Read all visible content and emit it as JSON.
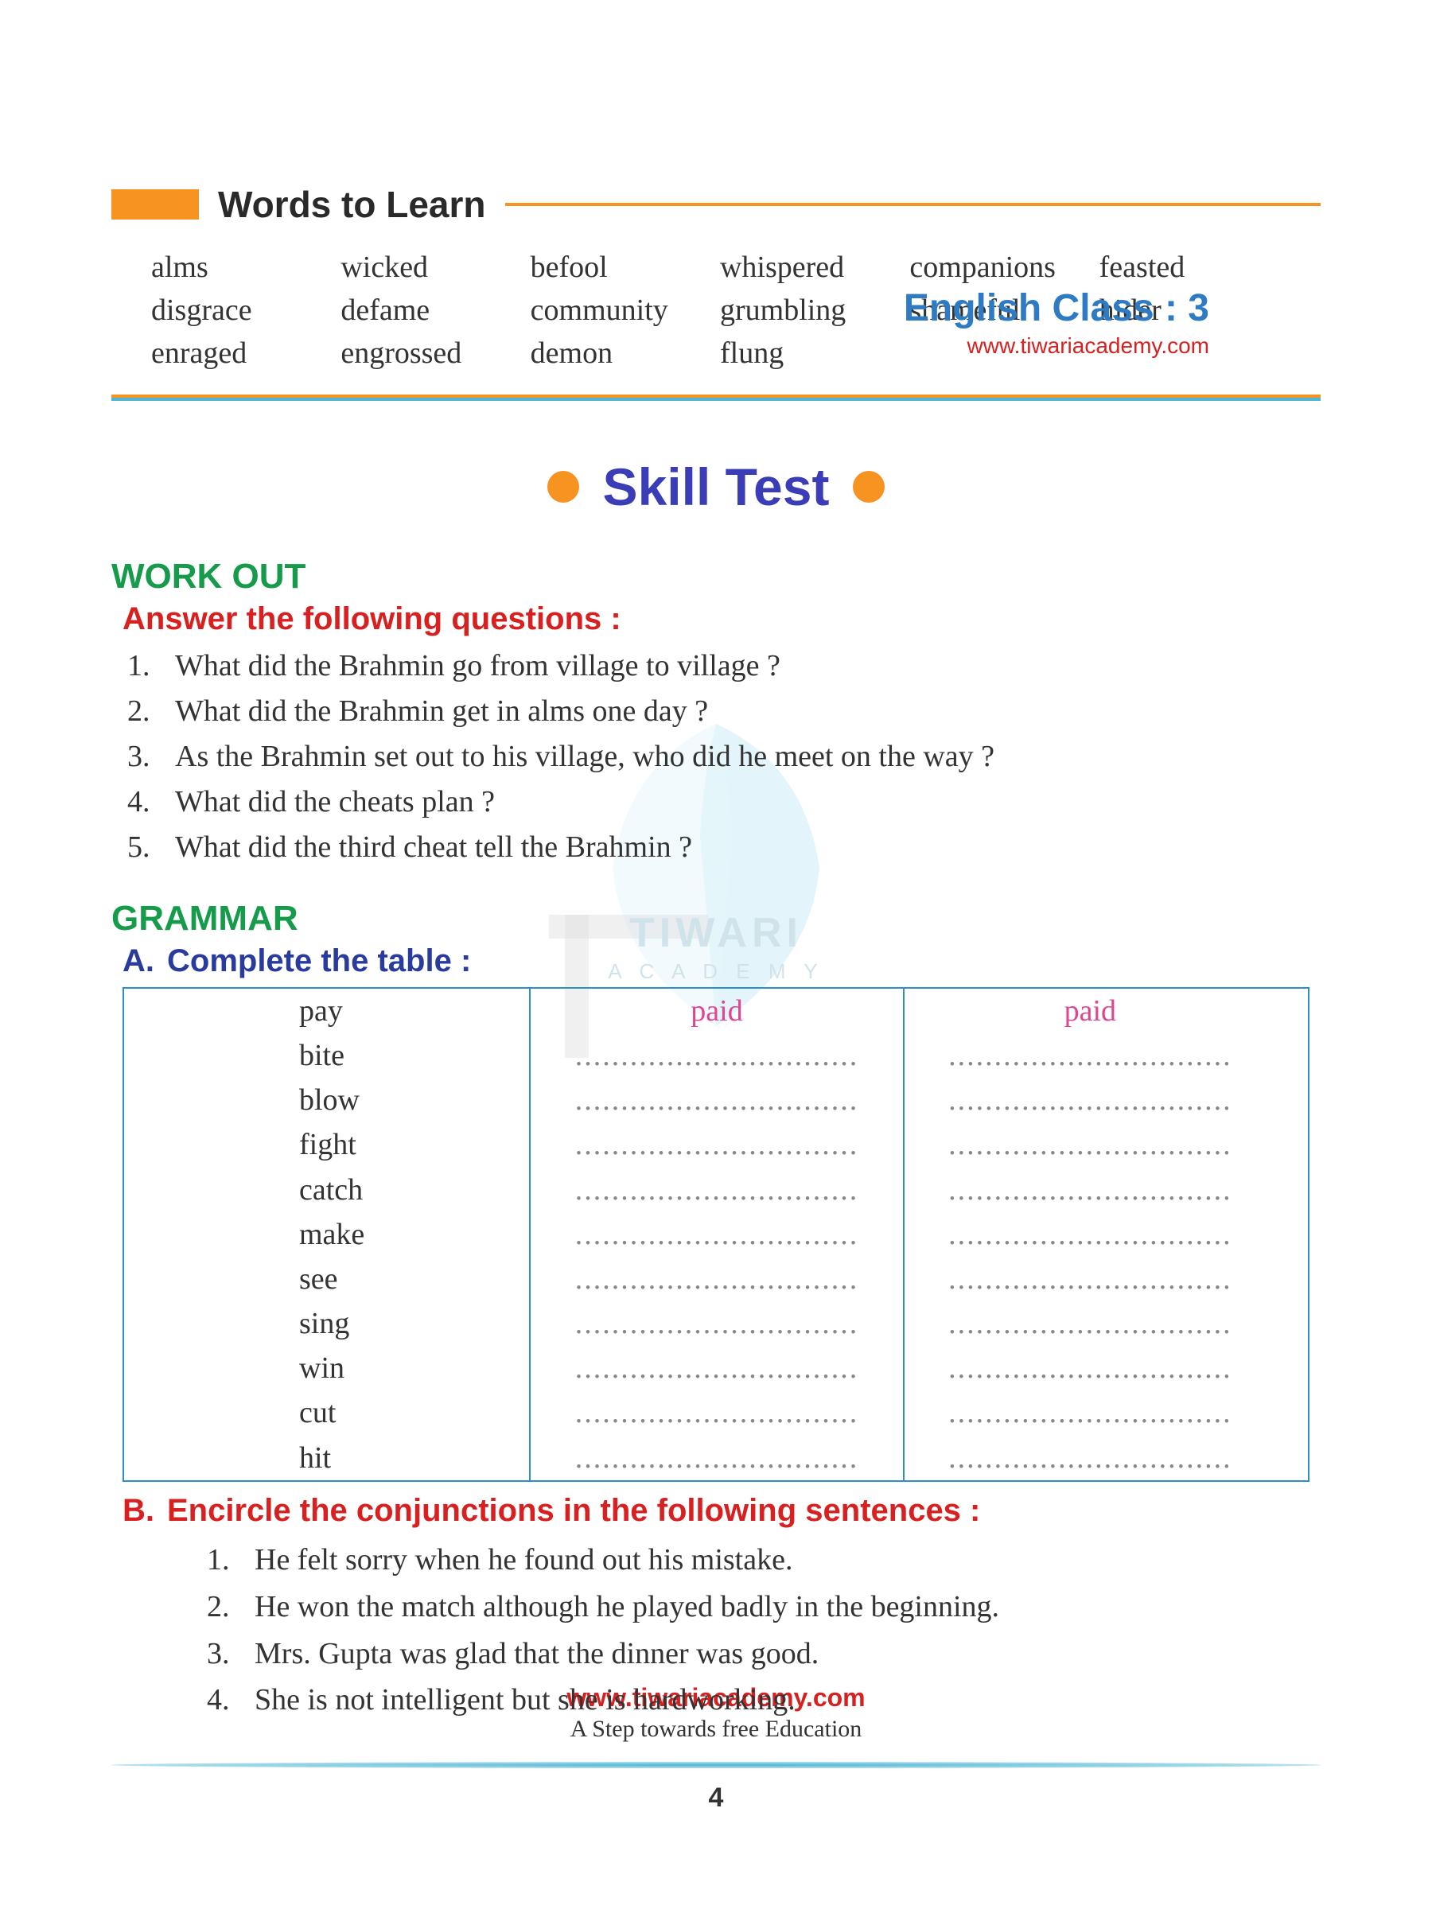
{
  "header": {
    "title": "English Class : 3",
    "url": "www.tiwariacademy.com"
  },
  "words_section": {
    "title": "Words to Learn",
    "words": [
      "alms",
      "wicked",
      "befool",
      "whispered",
      "companions",
      "feasted",
      "disgrace",
      "defame",
      "community",
      "grumbling",
      "shameful",
      "hider",
      "enraged",
      "engrossed",
      "demon",
      "flung"
    ]
  },
  "skill_test": {
    "title": "Skill Test"
  },
  "workout": {
    "title": "WORK OUT",
    "instruction": "Answer the following questions :",
    "questions": [
      "What did the Brahmin go from village to village ?",
      "What did the Brahmin get in alms one day ?",
      "As the Brahmin set out to his village, who did he meet on the way ?",
      "What did the cheats plan ?",
      "What did the third cheat tell the Brahmin ?"
    ]
  },
  "grammar": {
    "title": "GRAMMAR",
    "partA": {
      "letter": "A.",
      "instruction": "Complete the table :",
      "rows": [
        {
          "base": "pay",
          "past": "paid",
          "pp": "paid",
          "filled": true
        },
        {
          "base": "bite",
          "filled": false
        },
        {
          "base": "blow",
          "filled": false
        },
        {
          "base": "fight",
          "filled": false
        },
        {
          "base": "catch",
          "filled": false
        },
        {
          "base": "make",
          "filled": false
        },
        {
          "base": "see",
          "filled": false
        },
        {
          "base": "sing",
          "filled": false
        },
        {
          "base": "win",
          "filled": false
        },
        {
          "base": "cut",
          "filled": false
        },
        {
          "base": "hit",
          "filled": false
        }
      ]
    },
    "partB": {
      "letter": "B.",
      "instruction": "Encircle the conjunctions in the following sentences :",
      "sentences": [
        "He felt sorry when he found out his mistake.",
        "He won the match although he played badly in the beginning.",
        "Mrs. Gupta was glad that the dinner was good.",
        "She is not intelligent but she is hardworking."
      ]
    }
  },
  "footer": {
    "url": "www.tiwariacademy.com",
    "tagline": "A Step towards free Education",
    "page": "4"
  },
  "watermark": {
    "text1": "TIWARI",
    "text2": "A C A D E M Y"
  },
  "dots": "..............................."
}
